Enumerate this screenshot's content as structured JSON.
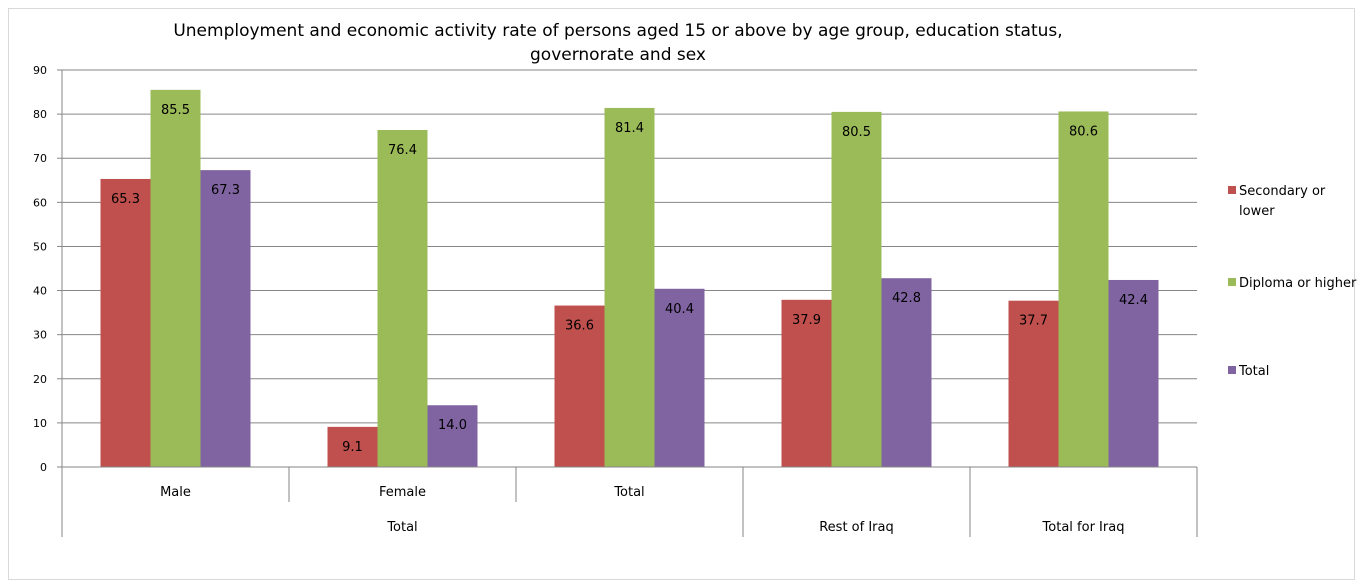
{
  "chart_data": {
    "type": "bar",
    "title_lines": [
      "Unemployment and economic activity rate of persons aged 15 or above by age group, education status,",
      "governorate and sex"
    ],
    "xlabel": "",
    "ylabel": "",
    "ylim": [
      0,
      90
    ],
    "yticks": [
      "0",
      "10",
      "20",
      "30",
      "40",
      "50",
      "60",
      "70",
      "80",
      "90"
    ],
    "categories": [
      "Male",
      "Female",
      "Total",
      "",
      ""
    ],
    "group_labels": [
      {
        "label": "Total",
        "span": [
          0,
          2
        ]
      },
      {
        "label": "Rest of Iraq",
        "span": [
          3,
          3
        ]
      },
      {
        "label": "Total for Iraq",
        "span": [
          4,
          4
        ]
      }
    ],
    "series": [
      {
        "name": "Secondary or lower",
        "color": "#C0504D",
        "values": [
          65.3,
          9.1,
          36.6,
          37.9,
          37.7
        ],
        "labels": [
          "65.3",
          "9.1",
          "36.6",
          "37.9",
          "37.7"
        ]
      },
      {
        "name": "Diploma or higher",
        "color": "#9BBB59",
        "values": [
          85.5,
          76.4,
          81.4,
          80.5,
          80.6
        ],
        "labels": [
          "85.5",
          "76.4",
          "81.4",
          "80.5",
          "80.6"
        ]
      },
      {
        "name": "Total",
        "color": "#8064A2",
        "values": [
          67.3,
          14.0,
          40.4,
          42.8,
          42.4
        ],
        "labels": [
          "67.3",
          "14.0",
          "40.4",
          "42.8",
          "42.4"
        ]
      }
    ],
    "legend_lines": [
      [
        "Secondary or",
        "lower"
      ],
      [
        "Diploma or higher"
      ],
      [
        "Total"
      ]
    ],
    "legend_position": "right",
    "grid": true,
    "colors": {
      "gridline": "#868686",
      "axis": "#868686"
    }
  }
}
